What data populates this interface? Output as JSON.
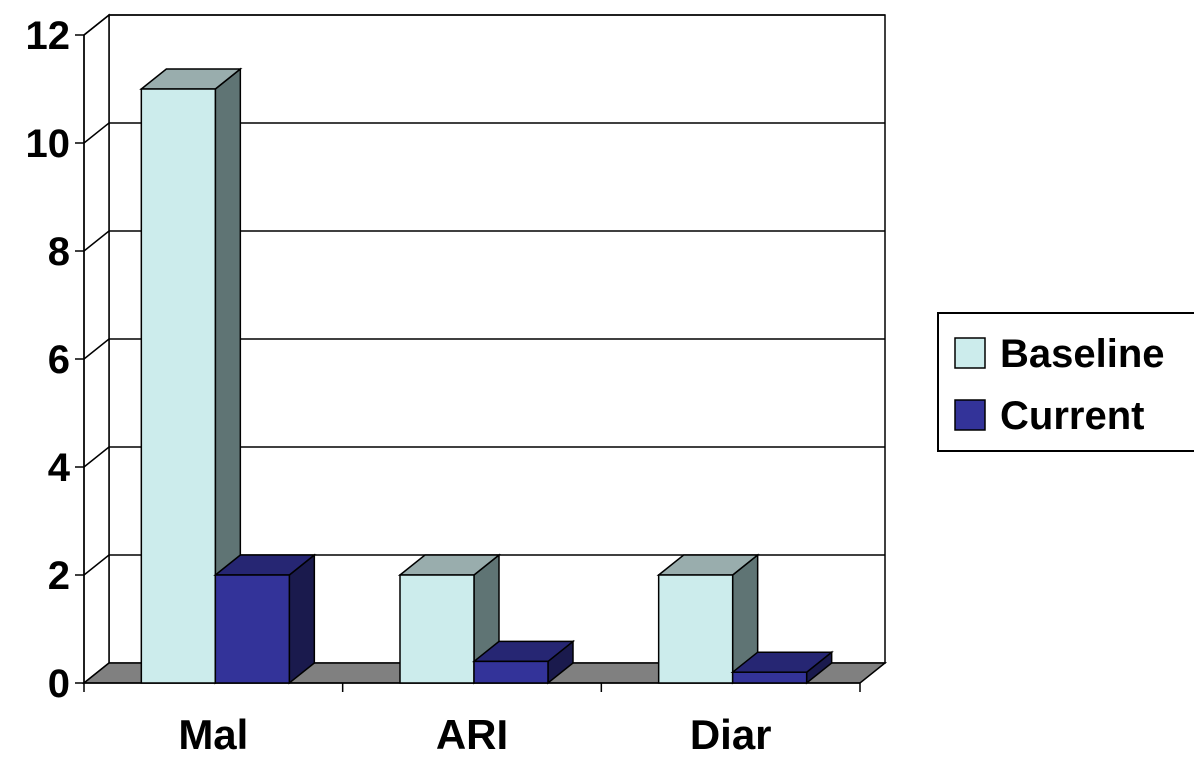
{
  "chart_data": {
    "type": "bar",
    "title": "",
    "xlabel": "",
    "ylabel": "",
    "categories": [
      "Mal",
      "ARI",
      "Diar"
    ],
    "series": [
      {
        "name": "Baseline",
        "values": [
          11,
          2,
          2
        ],
        "color": "#CCECEC",
        "side_color": "#5F7474",
        "top_color": "#99ADAD"
      },
      {
        "name": "Current",
        "values": [
          2,
          0.4,
          0.2
        ],
        "color": "#333399",
        "side_color": "#1A1A4D",
        "top_color": "#262673"
      }
    ],
    "ylim": [
      0,
      12
    ],
    "yticks": [
      "0",
      "2",
      "4",
      "6",
      "8",
      "10",
      "12"
    ],
    "grid": true,
    "three_d": true,
    "floor_color": "#808080",
    "legend": {
      "position": "right",
      "entries": [
        "Baseline",
        "Current"
      ]
    }
  }
}
